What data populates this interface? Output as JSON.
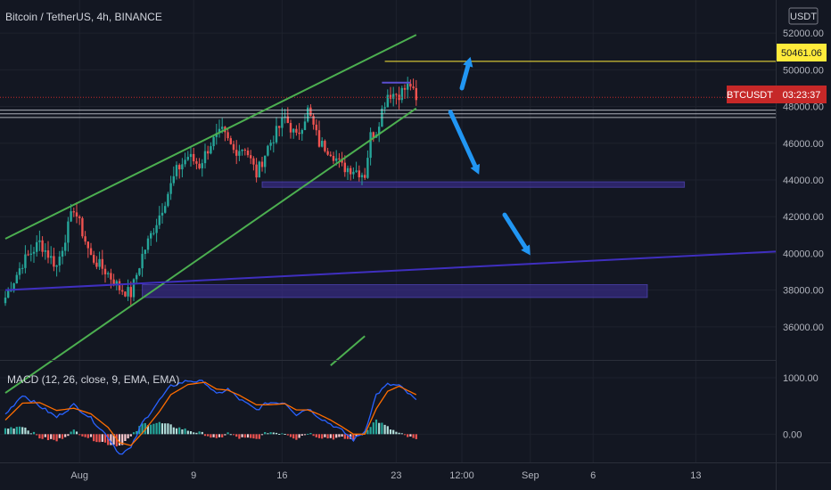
{
  "header": {
    "title": "Bitcoin / TetherUS, 4h, BINANCE",
    "currency": "USDT"
  },
  "colors": {
    "background": "#131722",
    "grid": "#1e222d",
    "candle_up": "#26a69a",
    "candle_down": "#ef5350",
    "channel": "#4caf50",
    "trendline": "#3f2fbf",
    "zone": "#3a2d8f",
    "resistance": "#ffeb3b",
    "arrow": "#2196f3",
    "macd_line": "#2962ff",
    "signal_line": "#ff6d00",
    "hist_up": "#b2dfdb",
    "hist_down": "#ffcdd2",
    "price_tag": "#c62828"
  },
  "price_tags": {
    "resistance_label": "50461.06",
    "symbol_label": "BTCUSDT",
    "countdown_label": "03:23:37"
  },
  "indicator": {
    "label": "MACD (12, 26, close, 9, EMA, EMA)"
  },
  "chart_data": [
    {
      "type": "candlestick",
      "title": "Bitcoin / TetherUS, 4h, BINANCE",
      "y_axis_unit": "USDT",
      "y_ticks": [
        36000,
        38000,
        40000,
        42000,
        44000,
        46000,
        48000,
        50000,
        52000
      ],
      "y_tick_labels": [
        "36000.00",
        "38000.00",
        "40000.00",
        "42000.00",
        "44000.00",
        "46000.00",
        "48000.00",
        "50000.00",
        "52000.00"
      ],
      "x_tick_labels": [
        "Aug",
        "9",
        "16",
        "23",
        "12:00",
        "Sep",
        "6",
        "13"
      ],
      "ylim": [
        34200,
        53800
      ],
      "candle_count": 145,
      "close_path": [
        [
          0,
          37600
        ],
        [
          6,
          39500
        ],
        [
          12,
          40600
        ],
        [
          18,
          39300
        ],
        [
          24,
          42500
        ],
        [
          30,
          39800
        ],
        [
          36,
          38900
        ],
        [
          40,
          38100
        ],
        [
          44,
          37800
        ],
        [
          48,
          39900
        ],
        [
          54,
          42100
        ],
        [
          60,
          44500
        ],
        [
          64,
          45300
        ],
        [
          68,
          44800
        ],
        [
          72,
          46000
        ],
        [
          76,
          46600
        ],
        [
          80,
          45600
        ],
        [
          84,
          45800
        ],
        [
          88,
          44300
        ],
        [
          92,
          45800
        ],
        [
          98,
          47400
        ],
        [
          102,
          46300
        ],
        [
          106,
          47800
        ],
        [
          110,
          46000
        ],
        [
          114,
          45600
        ],
        [
          118,
          44700
        ],
        [
          122,
          44600
        ],
        [
          126,
          44300
        ],
        [
          128,
          46400
        ],
        [
          130,
          46700
        ],
        [
          132,
          47800
        ],
        [
          134,
          48700
        ],
        [
          138,
          48700
        ],
        [
          142,
          49200
        ],
        [
          144,
          48200
        ]
      ],
      "channel_upper": [
        [
          0,
          40800
        ],
        [
          144,
          51900
        ]
      ],
      "channel_lower": [
        [
          0,
          32400
        ],
        [
          144,
          47900
        ]
      ],
      "channel_lower_extension": [
        [
          114,
          33900
        ],
        [
          126,
          35500
        ]
      ],
      "trendline": [
        [
          0,
          38000
        ],
        [
          270,
          40100
        ]
      ],
      "support_zones": [
        {
          "from": 90,
          "to": 238,
          "low": 43600,
          "high": 43900
        },
        {
          "from": 48,
          "to": 225,
          "low": 37600,
          "high": 38300
        }
      ],
      "resistance_box": {
        "from": 132,
        "to": 142,
        "level": 49300
      },
      "resistance_level": 50461.06,
      "current_price": 48500,
      "reference_lines": [
        47800,
        47600,
        47400
      ],
      "arrows": [
        {
          "direction": "up",
          "from": [
            160,
            49000
          ],
          "to": [
            163,
            50700
          ]
        },
        {
          "direction": "down",
          "from": [
            156,
            47700
          ],
          "to": [
            166,
            44300
          ]
        },
        {
          "direction": "down",
          "from": [
            175,
            42100
          ],
          "to": [
            184,
            39900
          ]
        }
      ]
    },
    {
      "type": "macd",
      "title": "MACD (12, 26, close, 9, EMA, EMA)",
      "y_ticks": [
        0,
        1000
      ],
      "y_tick_labels": [
        "0.00",
        "1000.00"
      ],
      "ylim": [
        -500,
        1300
      ],
      "macd": [
        [
          0,
          350
        ],
        [
          6,
          700
        ],
        [
          12,
          500
        ],
        [
          18,
          300
        ],
        [
          24,
          520
        ],
        [
          30,
          280
        ],
        [
          36,
          -50
        ],
        [
          40,
          -350
        ],
        [
          44,
          -250
        ],
        [
          48,
          200
        ],
        [
          54,
          600
        ],
        [
          58,
          850
        ],
        [
          64,
          950
        ],
        [
          70,
          920
        ],
        [
          74,
          700
        ],
        [
          78,
          800
        ],
        [
          82,
          620
        ],
        [
          88,
          430
        ],
        [
          92,
          560
        ],
        [
          98,
          560
        ],
        [
          102,
          350
        ],
        [
          106,
          460
        ],
        [
          110,
          300
        ],
        [
          114,
          180
        ],
        [
          118,
          60
        ],
        [
          122,
          -100
        ],
        [
          126,
          50
        ],
        [
          130,
          700
        ],
        [
          134,
          880
        ],
        [
          138,
          860
        ],
        [
          144,
          600
        ]
      ],
      "signal": [
        [
          0,
          250
        ],
        [
          6,
          550
        ],
        [
          12,
          560
        ],
        [
          18,
          420
        ],
        [
          24,
          460
        ],
        [
          30,
          360
        ],
        [
          36,
          120
        ],
        [
          40,
          -150
        ],
        [
          44,
          -200
        ],
        [
          48,
          20
        ],
        [
          54,
          400
        ],
        [
          58,
          700
        ],
        [
          64,
          880
        ],
        [
          70,
          920
        ],
        [
          74,
          800
        ],
        [
          78,
          780
        ],
        [
          82,
          690
        ],
        [
          88,
          520
        ],
        [
          92,
          520
        ],
        [
          98,
          540
        ],
        [
          102,
          430
        ],
        [
          106,
          430
        ],
        [
          110,
          350
        ],
        [
          114,
          250
        ],
        [
          118,
          130
        ],
        [
          122,
          0
        ],
        [
          126,
          0
        ],
        [
          130,
          450
        ],
        [
          134,
          760
        ],
        [
          138,
          850
        ],
        [
          144,
          700
        ]
      ]
    }
  ]
}
